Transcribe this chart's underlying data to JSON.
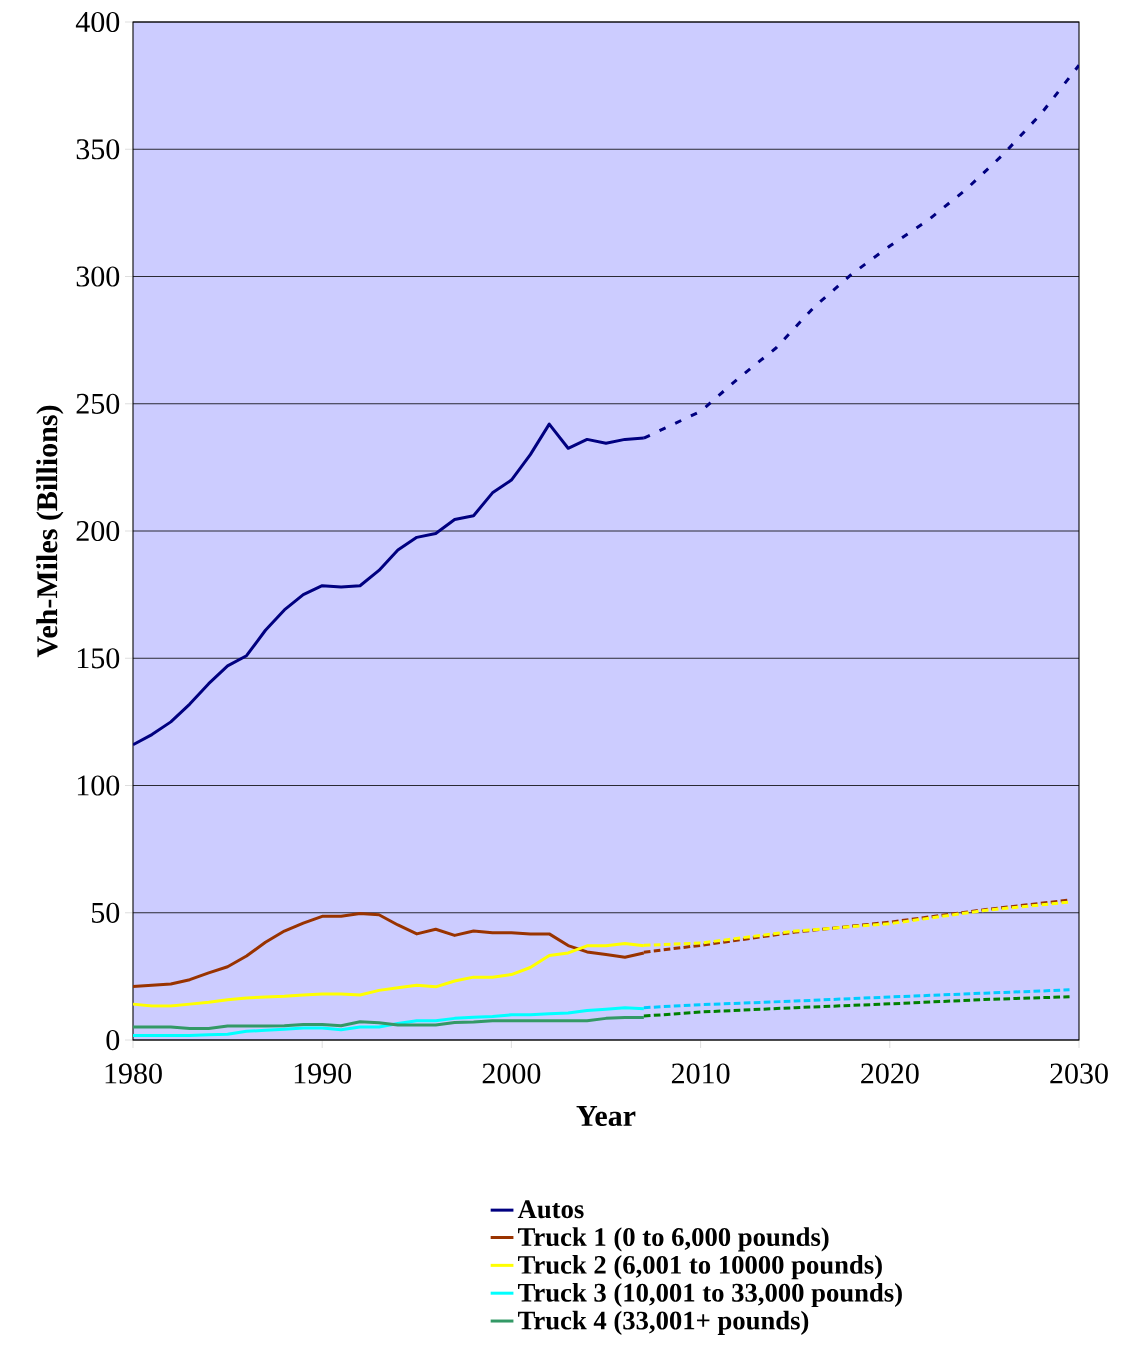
{
  "chart_data": {
    "type": "line",
    "xlabel": "Year",
    "ylabel": "Veh-Miles (Billions)",
    "xlim": [
      1980,
      2030
    ],
    "xticks": [
      1980,
      1990,
      2000,
      2010,
      2020,
      2030
    ],
    "ylim": [
      0,
      400
    ],
    "yticks": [
      0,
      50,
      100,
      150,
      200,
      250,
      300,
      350,
      400
    ],
    "grid": "y",
    "legend": "bottom",
    "marker": "none",
    "series": [
      {
        "name": "Autos",
        "color": "#000080",
        "line_style": "solid",
        "x": [
          1980,
          1981,
          1982,
          1983,
          1984,
          1985,
          1986,
          1987,
          1988,
          1989,
          1990,
          1991,
          1992,
          1993,
          1994,
          1995,
          1996,
          1997,
          1998,
          1999,
          2000,
          2001,
          2002,
          2003,
          2004,
          2005,
          2006,
          2007
        ],
        "values": [
          116,
          120,
          125,
          132,
          140,
          147,
          151,
          161,
          169,
          175,
          178.5,
          178,
          178.5,
          184.5,
          192.5,
          197.5,
          199,
          204.5,
          206,
          215,
          220,
          230,
          242,
          232.5,
          236,
          234.5,
          236,
          236.5
        ]
      },
      {
        "name": "Truck 1 (0 to 6,000 pounds)",
        "color": "#993300",
        "line_style": "solid",
        "x": [
          1980,
          1981,
          1982,
          1983,
          1984,
          1985,
          1986,
          1987,
          1988,
          1989,
          1990,
          1991,
          1992,
          1993,
          1994,
          1995,
          1996,
          1997,
          1998,
          1999,
          2000,
          2001,
          2002,
          2003,
          2004,
          2005,
          2006,
          2007
        ],
        "values": [
          21,
          21.5,
          22,
          23.7,
          26.4,
          28.8,
          33,
          38.4,
          42.8,
          45.9,
          48.6,
          48.6,
          49.7,
          49.2,
          45.2,
          41.7,
          43.5,
          41.1,
          42.8,
          42.1,
          42.1,
          41.7,
          41.7,
          37.1,
          34.6,
          33.6,
          32.5,
          34.2
        ]
      },
      {
        "name": "Truck 2 (6,001 to 10000 pounds)",
        "color": "#ffff00",
        "line_style": "solid",
        "x": [
          1980,
          1981,
          1982,
          1983,
          1984,
          1985,
          1986,
          1987,
          1988,
          1989,
          1990,
          1991,
          1992,
          1993,
          1994,
          1995,
          1996,
          1997,
          1998,
          1999,
          2000,
          2001,
          2002,
          2003,
          2004,
          2005,
          2006,
          2007
        ],
        "values": [
          14.1,
          13.4,
          13.4,
          14.1,
          14.8,
          15.8,
          16.5,
          16.9,
          17.2,
          17.7,
          18.1,
          18.1,
          17.7,
          19.5,
          20.5,
          21.5,
          20.9,
          23.2,
          24.7,
          24.7,
          25.7,
          28.5,
          33.2,
          34.2,
          37,
          37,
          37.9,
          37
        ]
      },
      {
        "name": "Truck 3 (10,001 to 33,000  pounds)",
        "color": "#00ffff",
        "line_style": "solid",
        "x": [
          1980,
          1981,
          1982,
          1983,
          1984,
          1985,
          1986,
          1987,
          1988,
          1989,
          1990,
          1991,
          1992,
          1993,
          1994,
          1995,
          1996,
          1997,
          1998,
          1999,
          2000,
          2001,
          2002,
          2003,
          2004,
          2005,
          2006,
          2007
        ],
        "values": [
          1.8,
          1.8,
          1.8,
          1.8,
          2.1,
          2.3,
          3.4,
          3.8,
          4.2,
          4.7,
          4.7,
          4,
          5.1,
          5.1,
          6.5,
          7.6,
          7.6,
          8.5,
          8.9,
          9.2,
          9.9,
          9.9,
          10.3,
          10.6,
          11.6,
          12.1,
          12.7,
          12.3
        ]
      },
      {
        "name": "Truck 4 (33,001+  pounds)",
        "color": "#339966",
        "line_style": "solid",
        "x": [
          1980,
          1981,
          1982,
          1983,
          1984,
          1985,
          1986,
          1987,
          1988,
          1989,
          1990,
          1991,
          1992,
          1993,
          1994,
          1995,
          1996,
          1997,
          1998,
          1999,
          2000,
          2001,
          2002,
          2003,
          2004,
          2005,
          2006,
          2007
        ],
        "values": [
          5.1,
          5.1,
          5.1,
          4.5,
          4.5,
          5.5,
          5.5,
          5.5,
          5.6,
          6.1,
          6.1,
          5.6,
          7.2,
          6.8,
          5.9,
          5.9,
          5.9,
          6.9,
          7.1,
          7.6,
          7.6,
          7.6,
          7.6,
          7.6,
          7.6,
          8.5,
          8.8,
          8.8
        ]
      },
      {
        "color": "#000080",
        "line_style": "dotted",
        "x": [
          2007,
          2008,
          2010,
          2012,
          2014,
          2016,
          2018,
          2020,
          2022,
          2024,
          2026,
          2028,
          2030
        ],
        "values": [
          236.5,
          240,
          247,
          260,
          272,
          288,
          301,
          312,
          322,
          334,
          348,
          364,
          383
        ]
      },
      {
        "color": "#993300",
        "line_style": "dashed",
        "x": [
          2007,
          2010,
          2015,
          2020,
          2025,
          2029.5
        ],
        "values": [
          34.5,
          37.2,
          42.4,
          46.3,
          51.2,
          55
        ]
      },
      {
        "color": "#ffff00",
        "line_style": "dashed",
        "x": [
          2007,
          2010,
          2015,
          2020,
          2025,
          2029.5
        ],
        "values": [
          37.2,
          38.1,
          42.8,
          45.7,
          50.9,
          54.2
        ]
      },
      {
        "color": "#00ccff",
        "line_style": "dashed",
        "x": [
          2007,
          2010,
          2015,
          2020,
          2025,
          2029.5
        ],
        "values": [
          12.7,
          13.9,
          15.3,
          16.9,
          18.4,
          19.7
        ]
      },
      {
        "color": "#008000",
        "line_style": "dashed",
        "x": [
          2007,
          2010,
          2015,
          2020,
          2025,
          2029.5
        ],
        "values": [
          9.4,
          11,
          12.7,
          14.2,
          15.9,
          17
        ]
      }
    ]
  }
}
